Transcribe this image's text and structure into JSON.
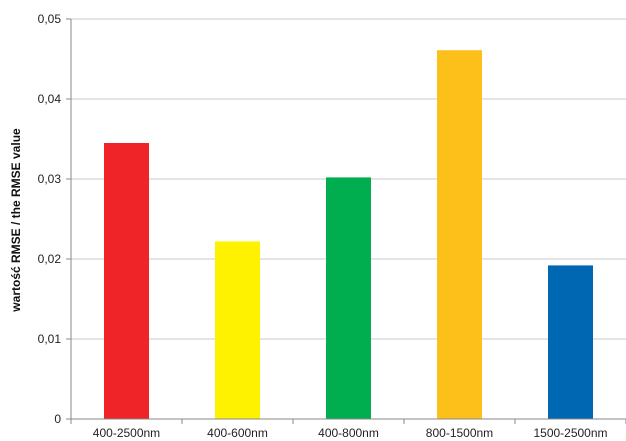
{
  "chart_data": {
    "type": "bar",
    "title": "",
    "xlabel": "",
    "ylabel": "wartość RMSE / the RMSE value",
    "categories": [
      "400-2500nm",
      "400-600nm",
      "400-800nm",
      "800-1500nm",
      "1500-2500nm"
    ],
    "values": [
      0.0345,
      0.0222,
      0.0302,
      0.0461,
      0.0192
    ],
    "colors": [
      "#ee2429",
      "#fef200",
      "#00ae4f",
      "#fdc01b",
      "#0067b3"
    ],
    "ylim": [
      0,
      0.05
    ],
    "yticks": [
      0,
      0.01,
      0.02,
      0.03,
      0.04,
      0.05
    ],
    "ytick_labels": [
      "0",
      "0,01",
      "0,02",
      "0,03",
      "0,04",
      "0,05"
    ],
    "grid": true,
    "legend": "none"
  }
}
